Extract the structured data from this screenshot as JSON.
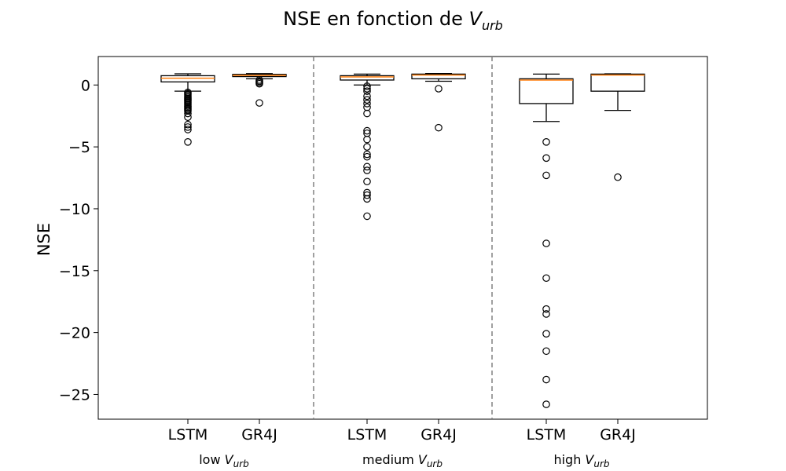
{
  "chart_data": {
    "type": "box",
    "title": {
      "main": "NSE en fonction de ",
      "var": "V",
      "sub": "urb"
    },
    "ylabel": "NSE",
    "ylim": [
      -27,
      2.3
    ],
    "yticks": [
      0,
      -5,
      -10,
      -15,
      -20,
      -25
    ],
    "ytick_labels": [
      "0",
      "−5",
      "−10",
      "−15",
      "−20",
      "−25"
    ],
    "group_labels": [
      {
        "prefix": "low ",
        "var": "V",
        "sub": "urb"
      },
      {
        "prefix": "medium ",
        "var": "V",
        "sub": "urb"
      },
      {
        "prefix": "high ",
        "var": "V",
        "sub": "urb"
      }
    ],
    "boxes": [
      {
        "label": "LSTM",
        "group": 0,
        "q1": 0.25,
        "median": 0.55,
        "q3": 0.75,
        "whisker_low": -0.5,
        "whisker_high": 0.9,
        "fliers": [
          -0.6,
          -0.7,
          -0.8,
          -0.9,
          -1.0,
          -1.1,
          -1.2,
          -1.3,
          -1.4,
          -1.5,
          -1.6,
          -1.7,
          -1.8,
          -1.9,
          -2.0,
          -2.1,
          -2.3,
          -2.6,
          -3.2,
          -3.4,
          -3.6,
          -4.6
        ]
      },
      {
        "label": "GR4J",
        "group": 0,
        "q1": 0.68,
        "median": 0.78,
        "q3": 0.86,
        "whisker_low": 0.5,
        "whisker_high": 0.92,
        "fliers": [
          0.4,
          0.3,
          0.2,
          0.1,
          -1.45
        ]
      },
      {
        "label": "LSTM",
        "group": 1,
        "q1": 0.4,
        "median": 0.65,
        "q3": 0.75,
        "whisker_low": 0.0,
        "whisker_high": 0.88,
        "fliers": [
          -0.1,
          -0.3,
          -0.5,
          -0.9,
          -1.2,
          -1.5,
          -1.8,
          -2.3,
          -3.7,
          -3.9,
          -4.4,
          -5.0,
          -5.6,
          -5.8,
          -6.6,
          -6.9,
          -7.8,
          -8.7,
          -8.9,
          -9.2,
          -10.6
        ]
      },
      {
        "label": "GR4J",
        "group": 1,
        "q1": 0.5,
        "median": 0.8,
        "q3": 0.88,
        "whisker_low": 0.3,
        "whisker_high": 0.93,
        "fliers": [
          -0.3,
          -3.45
        ]
      },
      {
        "label": "LSTM",
        "group": 2,
        "q1": -1.5,
        "median": 0.4,
        "q3": 0.5,
        "whisker_low": -2.95,
        "whisker_high": 0.88,
        "fliers": [
          -4.6,
          -5.9,
          -7.3,
          -12.8,
          -15.6,
          -18.1,
          -18.5,
          -20.1,
          -21.5,
          -23.8,
          -25.8
        ]
      },
      {
        "label": "GR4J",
        "group": 2,
        "q1": -0.5,
        "median": 0.8,
        "q3": 0.88,
        "whisker_low": -2.05,
        "whisker_high": 0.9,
        "fliers": [
          -7.45
        ]
      }
    ],
    "separators_after_group": [
      0,
      1
    ],
    "grid": false
  }
}
